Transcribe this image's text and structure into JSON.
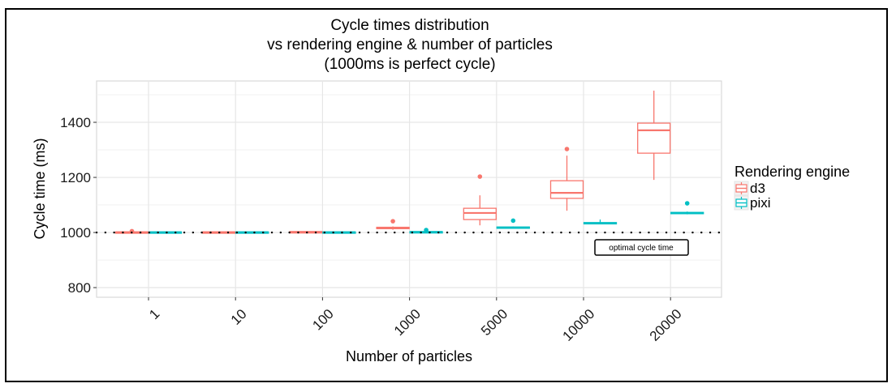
{
  "chart_data": {
    "type": "boxplot",
    "title": [
      "Cycle times distribution",
      "vs rendering engine & number of particles",
      "(1000ms is perfect cycle)"
    ],
    "xlabel": "Number of particles",
    "ylabel": "Cycle time (ms)",
    "categories": [
      "1",
      "10",
      "100",
      "1000",
      "5000",
      "10000",
      "20000"
    ],
    "ylim": [
      765,
      1550
    ],
    "yticks": [
      800,
      1000,
      1200,
      1400
    ],
    "yminor": [
      900,
      1100,
      1300,
      1500
    ],
    "grid": true,
    "legend": {
      "title": "Rendering engine",
      "placement": "right",
      "entries": [
        {
          "name": "d3",
          "color": "#F8766D"
        },
        {
          "name": "pixi",
          "color": "#00BFC4"
        }
      ]
    },
    "reference_line": {
      "y": 1000,
      "style": "dotted",
      "label": "optimal cycle time"
    },
    "series": [
      {
        "name": "d3",
        "color": "#F8766D",
        "boxes": [
          {
            "category": "1",
            "min": 1000,
            "q1": 1000,
            "median": 1001,
            "q3": 1002,
            "max": 1003,
            "outliers": [
              1005
            ]
          },
          {
            "category": "10",
            "min": 1000,
            "q1": 1000,
            "median": 1001,
            "q3": 1002,
            "max": 1003,
            "outliers": []
          },
          {
            "category": "100",
            "min": 1000,
            "q1": 1001,
            "median": 1002,
            "q3": 1003,
            "max": 1004,
            "outliers": []
          },
          {
            "category": "1000",
            "min": 1010,
            "q1": 1014,
            "median": 1016,
            "q3": 1019,
            "max": 1022,
            "outliers": [
              1041
            ]
          },
          {
            "category": "5000",
            "min": 1026,
            "q1": 1047,
            "median": 1071,
            "q3": 1088,
            "max": 1135,
            "outliers": [
              1203
            ]
          },
          {
            "category": "10000",
            "min": 1079,
            "q1": 1124,
            "median": 1144,
            "q3": 1188,
            "max": 1279,
            "outliers": [
              1303
            ]
          },
          {
            "category": "20000",
            "min": 1191,
            "q1": 1288,
            "median": 1371,
            "q3": 1397,
            "max": 1515,
            "outliers": []
          }
        ]
      },
      {
        "name": "pixi",
        "color": "#00BFC4",
        "boxes": [
          {
            "category": "1",
            "min": 1000,
            "q1": 1000,
            "median": 1001,
            "q3": 1002,
            "max": 1003,
            "outliers": []
          },
          {
            "category": "10",
            "min": 1000,
            "q1": 1000,
            "median": 1001,
            "q3": 1002,
            "max": 1003,
            "outliers": []
          },
          {
            "category": "100",
            "min": 1000,
            "q1": 1000,
            "median": 1001,
            "q3": 1002,
            "max": 1003,
            "outliers": []
          },
          {
            "category": "1000",
            "min": 1000,
            "q1": 1001,
            "median": 1002,
            "q3": 1003,
            "max": 1005,
            "outliers": [
              1009
            ]
          },
          {
            "category": "5000",
            "min": 1014,
            "q1": 1016,
            "median": 1018,
            "q3": 1020,
            "max": 1022,
            "outliers": [
              1043
            ]
          },
          {
            "category": "10000",
            "min": 1030,
            "q1": 1032,
            "median": 1034,
            "q3": 1036,
            "max": 1047,
            "outliers": []
          },
          {
            "category": "20000",
            "min": 1066,
            "q1": 1069,
            "median": 1071,
            "q3": 1073,
            "max": 1076,
            "outliers": [
              1106
            ]
          }
        ]
      }
    ]
  }
}
